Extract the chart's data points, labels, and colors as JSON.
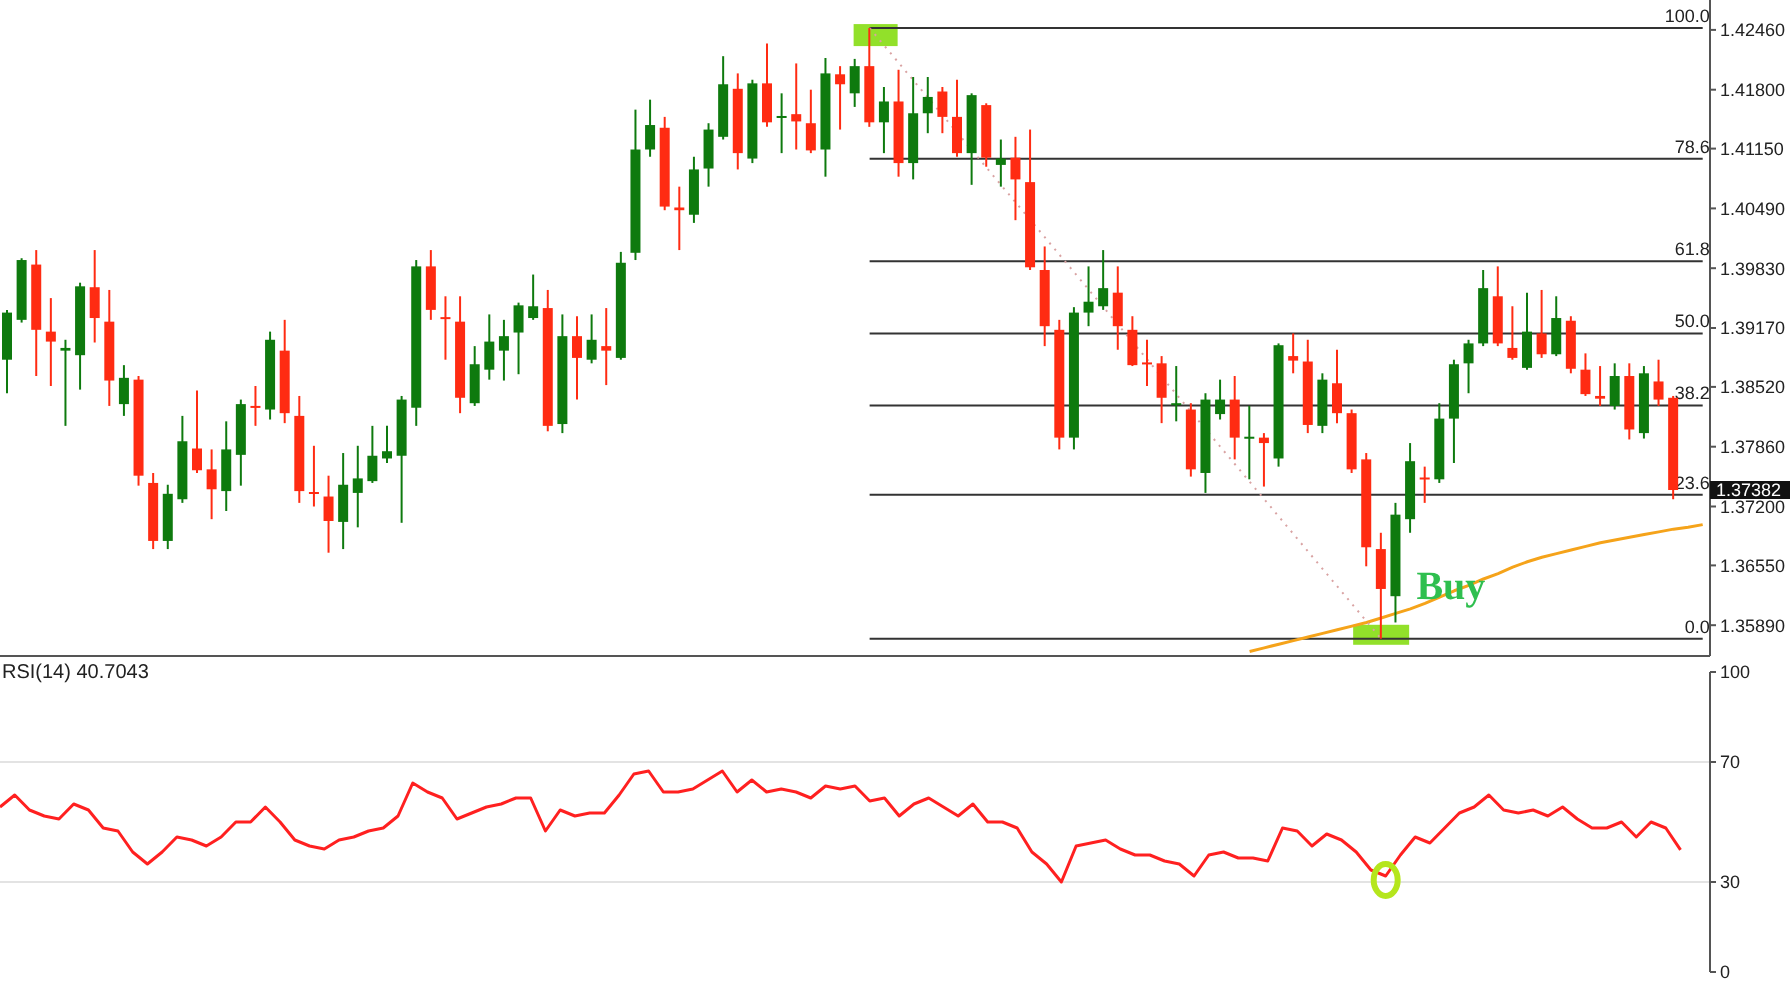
{
  "chart_data": [
    {
      "type": "candlestick",
      "categories": [
        null,
        null,
        null,
        null,
        null,
        null,
        null,
        null,
        null,
        null,
        null,
        null,
        null,
        null,
        null,
        null,
        null,
        null,
        null,
        null,
        null,
        null,
        null,
        null,
        null,
        null,
        null,
        null,
        null,
        null,
        null,
        null,
        null,
        null,
        null,
        null,
        null,
        null,
        null,
        null,
        null,
        null,
        null,
        null,
        null,
        null,
        null,
        null,
        null,
        null,
        null,
        null,
        null,
        null,
        null,
        null,
        null,
        null,
        null,
        null,
        null,
        null,
        null,
        null,
        null,
        null,
        null,
        null,
        null,
        null,
        null,
        null,
        null,
        null,
        null,
        null,
        null,
        null,
        null,
        null,
        null,
        null,
        null,
        null,
        null,
        null,
        null,
        null,
        null,
        null,
        null,
        null,
        null,
        null,
        null,
        null,
        null,
        null,
        null,
        null,
        null,
        null,
        null,
        null,
        null,
        null,
        null,
        null,
        null,
        null,
        null,
        null,
        null,
        null,
        null,
        null,
        null
      ],
      "ohlc": [
        [
          1.3882,
          1.3937,
          1.3845,
          1.3934
        ],
        [
          1.3926,
          1.3994,
          1.3923,
          1.3992
        ],
        [
          1.3987,
          1.4003,
          1.3864,
          1.3915
        ],
        [
          1.3913,
          1.395,
          1.3853,
          1.3902
        ],
        [
          1.3892,
          1.3904,
          1.3809,
          1.3895
        ],
        [
          1.3887,
          1.3967,
          1.3849,
          1.3963
        ],
        [
          1.3962,
          1.4003,
          1.3901,
          1.3928
        ],
        [
          1.3924,
          1.3959,
          1.3831,
          1.3859
        ],
        [
          1.3833,
          1.3876,
          1.382,
          1.3862
        ],
        [
          1.386,
          1.3864,
          1.3743,
          1.3754
        ],
        [
          1.3746,
          1.3757,
          1.3673,
          1.3682
        ],
        [
          1.3682,
          1.3744,
          1.3673,
          1.3734
        ],
        [
          1.3728,
          1.382,
          1.3724,
          1.3792
        ],
        [
          1.3784,
          1.3848,
          1.3757,
          1.376
        ],
        [
          1.3761,
          1.3783,
          1.3706,
          1.3739
        ],
        [
          1.3737,
          1.3814,
          1.3715,
          1.3783
        ],
        [
          1.3777,
          1.3838,
          1.3743,
          1.3833
        ],
        [
          1.3831,
          1.3853,
          1.3809,
          1.3829
        ],
        [
          1.3827,
          1.3913,
          1.3816,
          1.3904
        ],
        [
          1.3892,
          1.3926,
          1.3812,
          1.3823
        ],
        [
          1.382,
          1.3842,
          1.3724,
          1.3737
        ],
        [
          1.3736,
          1.3787,
          1.372,
          1.3734
        ],
        [
          1.3731,
          1.3754,
          1.3669,
          1.3704
        ],
        [
          1.3703,
          1.3779,
          1.3673,
          1.3744
        ],
        [
          1.3735,
          1.3787,
          1.3697,
          1.3751
        ],
        [
          1.3748,
          1.3809,
          1.3746,
          1.3776
        ],
        [
          1.3773,
          1.3809,
          1.3768,
          1.3781
        ],
        [
          1.3776,
          1.3842,
          1.3702,
          1.3838
        ],
        [
          1.3829,
          1.3992,
          1.3809,
          1.3985
        ],
        [
          1.3985,
          1.4003,
          1.3926,
          1.3937
        ],
        [
          1.3929,
          1.3952,
          1.3882,
          1.3928
        ],
        [
          1.3924,
          1.3952,
          1.3823,
          1.384
        ],
        [
          1.3834,
          1.3897,
          1.3831,
          1.3877
        ],
        [
          1.3871,
          1.3932,
          1.386,
          1.3902
        ],
        [
          1.3892,
          1.3926,
          1.3859,
          1.3908
        ],
        [
          1.3912,
          1.3945,
          1.3866,
          1.3942
        ],
        [
          1.3928,
          1.3976,
          1.3926,
          1.3941
        ],
        [
          1.3939,
          1.3959,
          1.3803,
          1.3809
        ],
        [
          1.3811,
          1.3932,
          1.3801,
          1.3908
        ],
        [
          1.3908,
          1.393,
          1.3838,
          1.3884
        ],
        [
          1.3882,
          1.3932,
          1.3878,
          1.3904
        ],
        [
          1.3897,
          1.3939,
          1.3854,
          1.3892
        ],
        [
          1.3884,
          1.4001,
          1.3882,
          1.3989
        ],
        [
          1.4,
          1.4158,
          1.3992,
          1.4114
        ],
        [
          1.4114,
          1.4169,
          1.4106,
          1.4141
        ],
        [
          1.4138,
          1.415,
          1.4047,
          1.4051
        ],
        [
          1.405,
          1.4073,
          1.4003,
          1.4047
        ],
        [
          1.4042,
          1.4106,
          1.4033,
          1.4092
        ],
        [
          1.4093,
          1.4143,
          1.4073,
          1.4136
        ],
        [
          1.4128,
          1.4217,
          1.4125,
          1.4186
        ],
        [
          1.4181,
          1.4198,
          1.4092,
          1.411
        ],
        [
          1.4104,
          1.4191,
          1.4099,
          1.4187
        ],
        [
          1.4187,
          1.4231,
          1.4139,
          1.4144
        ],
        [
          1.415,
          1.4176,
          1.411,
          1.4151
        ],
        [
          1.4153,
          1.4209,
          1.4114,
          1.4145
        ],
        [
          1.4143,
          1.418,
          1.411,
          1.4113
        ],
        [
          1.4114,
          1.4215,
          1.4084,
          1.4198
        ],
        [
          1.4197,
          1.4206,
          1.4136,
          1.4186
        ],
        [
          1.4176,
          1.4214,
          1.4161,
          1.4206
        ],
        [
          1.4206,
          1.4248,
          1.4139,
          1.4144
        ],
        [
          1.4144,
          1.4183,
          1.411,
          1.4167
        ],
        [
          1.4167,
          1.4202,
          1.4084,
          1.4099
        ],
        [
          1.4099,
          1.4194,
          1.4081,
          1.4154
        ],
        [
          1.4154,
          1.4194,
          1.4132,
          1.4172
        ],
        [
          1.4178,
          1.4183,
          1.4132,
          1.415
        ],
        [
          1.415,
          1.4191,
          1.4106,
          1.411
        ],
        [
          1.411,
          1.4176,
          1.4075,
          1.4174
        ],
        [
          1.4163,
          1.4165,
          1.4095,
          1.4105
        ],
        [
          1.4097,
          1.4125,
          1.4073,
          1.4104
        ],
        [
          1.4105,
          1.4128,
          1.4036,
          1.4081
        ],
        [
          1.4078,
          1.4136,
          1.3981,
          1.3984
        ],
        [
          1.3981,
          1.4007,
          1.3897,
          1.3919
        ],
        [
          1.3915,
          1.3926,
          1.3783,
          1.3796
        ],
        [
          1.3796,
          1.394,
          1.3783,
          1.3934
        ],
        [
          1.3934,
          1.3985,
          1.3919,
          1.3946
        ],
        [
          1.3941,
          1.4003,
          1.3937,
          1.3961
        ],
        [
          1.3956,
          1.3985,
          1.3893,
          1.3919
        ],
        [
          1.3915,
          1.393,
          1.3875,
          1.3876
        ],
        [
          1.3879,
          1.3904,
          1.3853,
          1.3877
        ],
        [
          1.3878,
          1.3886,
          1.3812,
          1.384
        ],
        [
          1.3833,
          1.3875,
          1.3814,
          1.3834
        ],
        [
          1.3827,
          1.3834,
          1.3753,
          1.3761
        ],
        [
          1.3757,
          1.3845,
          1.3735,
          1.3838
        ],
        [
          1.3822,
          1.386,
          1.3816,
          1.3838
        ],
        [
          1.3838,
          1.3864,
          1.3772,
          1.3796
        ],
        [
          1.3795,
          1.3831,
          1.375,
          1.3797
        ],
        [
          1.3796,
          1.3801,
          1.3742,
          1.379
        ],
        [
          1.3773,
          1.39,
          1.3764,
          1.3898
        ],
        [
          1.3886,
          1.3911,
          1.3867,
          1.3881
        ],
        [
          1.388,
          1.3904,
          1.3801,
          1.381
        ],
        [
          1.3809,
          1.3867,
          1.3801,
          1.386
        ],
        [
          1.3856,
          1.3893,
          1.3812,
          1.3823
        ],
        [
          1.3823,
          1.3827,
          1.3757,
          1.3761
        ],
        [
          1.3772,
          1.3779,
          1.3654,
          1.3675
        ],
        [
          1.3673,
          1.3691,
          1.3574,
          1.3629
        ],
        [
          1.3621,
          1.3724,
          1.3592,
          1.3711
        ],
        [
          1.3706,
          1.379,
          1.3691,
          1.377
        ],
        [
          1.3752,
          1.3764,
          1.3724,
          1.375
        ],
        [
          1.375,
          1.3834,
          1.3746,
          1.3817
        ],
        [
          1.3817,
          1.3882,
          1.3768,
          1.3877
        ],
        [
          1.3878,
          1.3904,
          1.3845,
          1.39
        ],
        [
          1.39,
          1.3981,
          1.3897,
          1.3961
        ],
        [
          1.3952,
          1.3985,
          1.3897,
          1.39
        ],
        [
          1.3895,
          1.3941,
          1.3882,
          1.3884
        ],
        [
          1.3873,
          1.3956,
          1.3871,
          1.3913
        ],
        [
          1.3911,
          1.3959,
          1.3884,
          1.3888
        ],
        [
          1.3888,
          1.3952,
          1.3886,
          1.3928
        ],
        [
          1.3925,
          1.393,
          1.3867,
          1.3872
        ],
        [
          1.3871,
          1.3889,
          1.3842,
          1.3844
        ],
        [
          1.3842,
          1.3875,
          1.3831,
          1.3839
        ],
        [
          1.3831,
          1.3878,
          1.3827,
          1.3864
        ],
        [
          1.3864,
          1.3878,
          1.3794,
          1.3805
        ],
        [
          1.3801,
          1.3875,
          1.3795,
          1.3867
        ],
        [
          1.3858,
          1.3882,
          1.3831,
          1.3838
        ],
        [
          1.384,
          1.3842,
          1.3728,
          1.37382
        ],
        null,
        null
      ],
      "colors": [
        "#0e7a0e",
        "#0e7a0e",
        "#ff2b12",
        "#ff2b12",
        "#0e7a0e",
        "#0e7a0e",
        "#ff2b12",
        "#ff2b12",
        "#0e7a0e",
        "#ff2b12",
        "#ff2b12",
        "#0e7a0e",
        "#0e7a0e",
        "#ff2b12",
        "#ff2b12",
        "#0e7a0e",
        "#0e7a0e",
        "#ff2b12",
        "#0e7a0e",
        "#ff2b12",
        "#ff2b12",
        "#ff2b12",
        "#ff2b12",
        "#0e7a0e",
        "#0e7a0e",
        "#0e7a0e",
        "#0e7a0e",
        "#0e7a0e",
        "#0e7a0e",
        "#ff2b12",
        "#ff2b12",
        "#ff2b12",
        "#0e7a0e",
        "#0e7a0e",
        "#0e7a0e",
        "#0e7a0e",
        "#0e7a0e",
        "#ff2b12",
        "#0e7a0e",
        "#ff2b12",
        "#0e7a0e",
        "#ff2b12",
        "#0e7a0e",
        "#0e7a0e",
        "#0e7a0e",
        "#ff2b12",
        "#ff2b12",
        "#0e7a0e",
        "#0e7a0e",
        "#0e7a0e",
        "#ff2b12",
        "#0e7a0e",
        "#ff2b12",
        "#0e7a0e",
        "#ff2b12",
        "#ff2b12",
        "#0e7a0e",
        "#ff2b12",
        "#0e7a0e",
        "#ff2b12",
        "#0e7a0e",
        "#ff2b12",
        "#0e7a0e",
        "#0e7a0e",
        "#ff2b12",
        "#ff2b12",
        "#0e7a0e",
        "#ff2b12",
        "#0e7a0e",
        "#ff2b12",
        "#ff2b12",
        "#ff2b12",
        "#ff2b12",
        "#0e7a0e",
        "#0e7a0e",
        "#0e7a0e",
        "#ff2b12",
        "#ff2b12",
        "#ff2b12",
        "#ff2b12",
        "#0e7a0e",
        "#ff2b12",
        "#0e7a0e",
        "#0e7a0e",
        "#ff2b12",
        "#0e7a0e",
        "#ff2b12",
        "#0e7a0e",
        "#ff2b12",
        "#ff2b12",
        "#0e7a0e",
        "#ff2b12",
        "#ff2b12",
        "#ff2b12",
        "#ff2b12",
        "#0e7a0e",
        "#0e7a0e",
        "#ff2b12",
        "#0e7a0e",
        "#0e7a0e",
        "#0e7a0e",
        "#0e7a0e",
        "#ff2b12",
        "#ff2b12",
        "#0e7a0e",
        "#ff2b12",
        "#0e7a0e",
        "#ff2b12",
        "#ff2b12",
        "#ff2b12",
        "#0e7a0e",
        "#ff2b12",
        "#0e7a0e",
        "#ff2b12",
        "#ff2b12",
        null,
        null
      ],
      "ylim": [
        1.3555,
        1.4279
      ],
      "yticks": [
        {
          "value": 1.4246,
          "label": "1.42460"
        },
        {
          "value": 1.418,
          "label": "1.41800"
        },
        {
          "value": 1.4115,
          "label": "1.41150"
        },
        {
          "value": 1.4049,
          "label": "1.40490"
        },
        {
          "value": 1.3983,
          "label": "1.39830"
        },
        {
          "value": 1.3917,
          "label": "1.39170"
        },
        {
          "value": 1.3852,
          "label": "1.38520"
        },
        {
          "value": 1.3786,
          "label": "1.37860"
        },
        {
          "value": 1.372,
          "label": "1.37200"
        },
        {
          "value": 1.3655,
          "label": "1.36550"
        },
        {
          "value": 1.3589,
          "label": "1.35890"
        }
      ],
      "y2lim": [
        -2.82,
        104.6
      ],
      "tick_labels": "y",
      "series": [
        {
          "type": "line",
          "color": "#f5a31a",
          "values": [
            null,
            null,
            null,
            null,
            null,
            null,
            null,
            null,
            null,
            null,
            null,
            null,
            null,
            null,
            null,
            null,
            null,
            null,
            null,
            null,
            null,
            null,
            null,
            null,
            null,
            null,
            null,
            null,
            null,
            null,
            null,
            null,
            null,
            null,
            null,
            null,
            null,
            null,
            null,
            null,
            null,
            null,
            null,
            null,
            null,
            null,
            null,
            null,
            null,
            null,
            null,
            null,
            null,
            null,
            null,
            null,
            null,
            null,
            null,
            null,
            null,
            null,
            null,
            null,
            null,
            null,
            null,
            null,
            null,
            null,
            null,
            null,
            null,
            null,
            null,
            null,
            null,
            null,
            null,
            null,
            null,
            null,
            null,
            null,
            null,
            1.356,
            1.3564,
            1.3568,
            1.3572,
            1.3576,
            1.358,
            1.3584,
            1.3588,
            1.3592,
            1.3597,
            1.3602,
            1.3607,
            1.3613,
            1.362,
            1.3627,
            1.3633,
            1.364,
            1.3646,
            1.3653,
            1.3659,
            1.3664,
            1.3668,
            1.3672,
            1.3676,
            1.368,
            1.3683,
            1.3686,
            1.3689,
            1.3692,
            1.3695,
            1.3697,
            1.37
          ]
        },
        {
          "type": "line",
          "color": "#d9a3a3",
          "line_style": "dotted",
          "values": [
            null,
            null,
            null,
            null,
            null,
            null,
            null,
            null,
            null,
            null,
            null,
            null,
            null,
            null,
            null,
            null,
            null,
            null,
            null,
            null,
            null,
            null,
            null,
            null,
            null,
            null,
            null,
            null,
            null,
            null,
            null,
            null,
            null,
            null,
            null,
            null,
            null,
            null,
            null,
            null,
            null,
            null,
            null,
            null,
            null,
            null,
            null,
            null,
            null,
            null,
            null,
            null,
            null,
            null,
            null,
            null,
            null,
            null,
            null,
            1.4248,
            null,
            null,
            null,
            null,
            null,
            null,
            null,
            null,
            null,
            null,
            null,
            null,
            null,
            null,
            null,
            null,
            null,
            null,
            null,
            null,
            null,
            null,
            null,
            null,
            null,
            null,
            null,
            null,
            null,
            null,
            null,
            null,
            null,
            null,
            1.3574,
            null,
            null,
            null,
            null,
            null,
            null,
            null,
            null,
            null,
            null,
            null,
            null,
            null,
            null,
            null,
            null,
            null,
            null,
            null,
            null,
            null,
            null
          ]
        }
      ],
      "ref_lines": [
        {
          "axis": "y2",
          "value": 100,
          "label": "100.0",
          "color": "#333333"
        },
        {
          "axis": "y2",
          "value": 78.6,
          "label": "78.6",
          "color": "#333333"
        },
        {
          "axis": "y2",
          "value": 61.8,
          "label": "61.8",
          "color": "#333333"
        },
        {
          "axis": "y2",
          "value": 50,
          "label": "50.0",
          "color": "#333333"
        },
        {
          "axis": "y2",
          "value": 38.2,
          "label": "38.2",
          "color": "#333333"
        },
        {
          "axis": "y2",
          "value": 23.6,
          "label": "23.6",
          "color": "#333333"
        },
        {
          "axis": "y2",
          "value": 0,
          "label": "0.0",
          "color": "#333333"
        }
      ],
      "annotations": [
        {
          "text": "Buy",
          "y": 1.3622
        },
        "1.37382"
      ]
    },
    {
      "type": "line",
      "title": "RSI(14) 40.7043",
      "categories": [
        null,
        null,
        null,
        null,
        null,
        null,
        null,
        null,
        null,
        null,
        null,
        null,
        null,
        null,
        null,
        null,
        null,
        null,
        null,
        null,
        null,
        null,
        null,
        null,
        null,
        null,
        null,
        null,
        null,
        null,
        null,
        null,
        null,
        null,
        null,
        null,
        null,
        null,
        null,
        null,
        null,
        null,
        null,
        null,
        null,
        null,
        null,
        null,
        null,
        null,
        null,
        null,
        null,
        null,
        null,
        null,
        null,
        null,
        null,
        null,
        null,
        null,
        null,
        null,
        null,
        null,
        null,
        null,
        null,
        null,
        null,
        null,
        null,
        null,
        null,
        null,
        null,
        null,
        null,
        null,
        null,
        null,
        null,
        null,
        null,
        null,
        null,
        null,
        null,
        null,
        null,
        null,
        null,
        null,
        null,
        null,
        null,
        null,
        null,
        null,
        null,
        null,
        null,
        null,
        null,
        null,
        null,
        null,
        null,
        null,
        null,
        null,
        null,
        null,
        null,
        null,
        null
      ],
      "values": [
        55,
        59,
        54,
        52,
        51,
        56,
        54,
        48,
        47,
        40,
        36,
        40,
        45,
        44,
        42,
        45,
        50,
        50,
        55,
        50,
        44,
        42,
        41,
        44,
        45,
        47,
        48,
        52,
        63,
        60,
        58,
        51,
        53,
        55,
        56,
        58,
        58,
        47,
        54,
        52,
        53,
        53,
        59,
        66,
        67,
        60,
        60,
        61,
        64,
        67,
        60,
        64,
        60,
        61,
        60,
        58,
        62,
        61,
        62,
        57,
        58,
        52,
        56,
        58,
        55,
        52,
        56,
        50,
        50,
        48,
        40,
        36,
        30,
        42,
        43,
        44,
        41,
        39,
        39,
        37,
        36,
        32,
        39,
        40,
        38,
        38,
        37,
        48,
        47,
        42,
        46,
        44,
        40,
        34,
        32,
        39,
        45,
        43,
        48,
        53,
        55,
        59,
        54,
        53,
        54,
        52,
        55,
        51,
        48,
        48,
        50,
        45,
        50,
        48,
        40.7043,
        null,
        null
      ],
      "color": "#ff2020",
      "ylim": [
        0,
        100
      ],
      "yticks": [
        0,
        30,
        70,
        100
      ],
      "ref_lines": [
        {
          "axis": "y",
          "value": 30,
          "color": "#e3e3e3"
        },
        {
          "axis": "y",
          "value": 70,
          "color": "#e3e3e3"
        }
      ]
    }
  ]
}
